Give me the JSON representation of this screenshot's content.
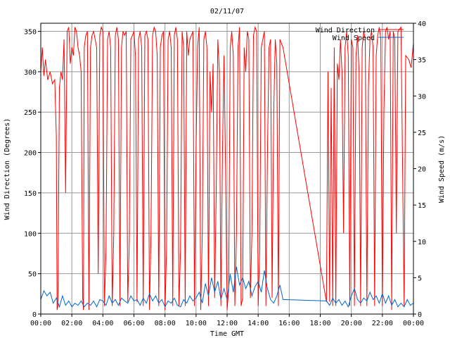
{
  "chart_data": {
    "type": "line",
    "title": "02/11/07",
    "xlabel": "Time GMT",
    "ylabel_left": "Wind Direction (Degrees)",
    "ylabel_right": "Wind Speed (m/s)",
    "x_unit": "hours GMT",
    "xlim": [
      0,
      24
    ],
    "ylim_left": [
      0,
      360
    ],
    "ylim_right": [
      0,
      40
    ],
    "x_ticks": [
      "00:00",
      "02:00",
      "04:00",
      "06:00",
      "08:00",
      "10:00",
      "12:00",
      "14:00",
      "16:00",
      "18:00",
      "20:00",
      "22:00",
      "00:00"
    ],
    "y_ticks_left": [
      "0",
      "50",
      "100",
      "150",
      "200",
      "250",
      "300",
      "350"
    ],
    "y_ticks_right": [
      "0",
      "5",
      "10",
      "15",
      "20",
      "25",
      "30",
      "35",
      "40"
    ],
    "grid": true,
    "legend_position": "top-right",
    "series": [
      {
        "name": "Wind Direction",
        "axis": "left",
        "color": "#ff0000",
        "points": [
          [
            0.0,
            300
          ],
          [
            0.1,
            330
          ],
          [
            0.2,
            295
          ],
          [
            0.3,
            315
          ],
          [
            0.45,
            290
          ],
          [
            0.6,
            300
          ],
          [
            0.75,
            285
          ],
          [
            0.9,
            290
          ],
          [
            1.0,
            220
          ],
          [
            1.05,
            5
          ],
          [
            1.1,
            10
          ],
          [
            1.2,
            280
          ],
          [
            1.3,
            300
          ],
          [
            1.4,
            290
          ],
          [
            1.5,
            340
          ],
          [
            1.6,
            150
          ],
          [
            1.7,
            350
          ],
          [
            1.8,
            355
          ],
          [
            1.9,
            310
          ],
          [
            2.0,
            330
          ],
          [
            2.1,
            320
          ],
          [
            2.2,
            355
          ],
          [
            2.3,
            350
          ],
          [
            2.4,
            330
          ],
          [
            2.5,
            320
          ],
          [
            2.6,
            300
          ],
          [
            2.7,
            20
          ],
          [
            2.75,
            5
          ],
          [
            2.8,
            330
          ],
          [
            2.9,
            345
          ],
          [
            3.0,
            350
          ],
          [
            3.1,
            5
          ],
          [
            3.2,
            330
          ],
          [
            3.3,
            345
          ],
          [
            3.4,
            350
          ],
          [
            3.5,
            340
          ],
          [
            3.6,
            330
          ],
          [
            3.7,
            50
          ],
          [
            3.8,
            345
          ],
          [
            3.9,
            355
          ],
          [
            4.0,
            350
          ],
          [
            4.1,
            10
          ],
          [
            4.2,
            80
          ],
          [
            4.3,
            340
          ],
          [
            4.4,
            350
          ],
          [
            4.5,
            330
          ],
          [
            4.6,
            10
          ],
          [
            4.7,
            100
          ],
          [
            4.8,
            345
          ],
          [
            4.9,
            355
          ],
          [
            5.0,
            340
          ],
          [
            5.1,
            10
          ],
          [
            5.2,
            330
          ],
          [
            5.3,
            350
          ],
          [
            5.4,
            345
          ],
          [
            5.5,
            350
          ],
          [
            5.6,
            15
          ],
          [
            5.7,
            90
          ],
          [
            5.8,
            340
          ],
          [
            5.9,
            345
          ],
          [
            6.0,
            350
          ],
          [
            6.1,
            320
          ],
          [
            6.2,
            15
          ],
          [
            6.3,
            340
          ],
          [
            6.4,
            350
          ],
          [
            6.5,
            330
          ],
          [
            6.6,
            10
          ],
          [
            6.7,
            345
          ],
          [
            6.8,
            350
          ],
          [
            6.9,
            340
          ],
          [
            7.0,
            5
          ],
          [
            7.1,
            100
          ],
          [
            7.2,
            345
          ],
          [
            7.3,
            355
          ],
          [
            7.4,
            350
          ],
          [
            7.5,
            320
          ],
          [
            7.6,
            10
          ],
          [
            7.7,
            330
          ],
          [
            7.8,
            345
          ],
          [
            7.9,
            350
          ],
          [
            8.0,
            5
          ],
          [
            8.1,
            80
          ],
          [
            8.2,
            340
          ],
          [
            8.3,
            350
          ],
          [
            8.4,
            330
          ],
          [
            8.5,
            10
          ],
          [
            8.6,
            345
          ],
          [
            8.7,
            355
          ],
          [
            8.8,
            340
          ],
          [
            8.9,
            10
          ],
          [
            9.0,
            80
          ],
          [
            9.1,
            350
          ],
          [
            9.2,
            330
          ],
          [
            9.3,
            10
          ],
          [
            9.4,
            350
          ],
          [
            9.5,
            320
          ],
          [
            9.6,
            340
          ],
          [
            9.7,
            345
          ],
          [
            9.8,
            350
          ],
          [
            9.9,
            10
          ],
          [
            10.0,
            200
          ],
          [
            10.1,
            330
          ],
          [
            10.2,
            355
          ],
          [
            10.3,
            5
          ],
          [
            10.4,
            100
          ],
          [
            10.5,
            340
          ],
          [
            10.6,
            350
          ],
          [
            10.7,
            330
          ],
          [
            10.8,
            10
          ],
          [
            10.9,
            300
          ],
          [
            11.0,
            250
          ],
          [
            11.1,
            310
          ],
          [
            11.2,
            20
          ],
          [
            11.3,
            150
          ],
          [
            11.4,
            340
          ],
          [
            11.5,
            300
          ],
          [
            11.6,
            10
          ],
          [
            11.7,
            200
          ],
          [
            11.8,
            320
          ],
          [
            11.9,
            180
          ],
          [
            12.0,
            5
          ],
          [
            12.1,
            30
          ],
          [
            12.2,
            330
          ],
          [
            12.3,
            350
          ],
          [
            12.4,
            320
          ],
          [
            12.5,
            10
          ],
          [
            12.6,
            100
          ],
          [
            12.7,
            330
          ],
          [
            12.8,
            355
          ],
          [
            12.9,
            10
          ],
          [
            13.0,
            20
          ],
          [
            13.1,
            330
          ],
          [
            13.2,
            300
          ],
          [
            13.3,
            350
          ],
          [
            13.4,
            340
          ],
          [
            13.5,
            20
          ],
          [
            13.6,
            100
          ],
          [
            13.7,
            345
          ],
          [
            13.8,
            355
          ],
          [
            13.9,
            350
          ],
          [
            14.0,
            10
          ],
          [
            14.1,
            80
          ],
          [
            14.2,
            330
          ],
          [
            14.3,
            340
          ],
          [
            14.4,
            350
          ],
          [
            14.5,
            10
          ],
          [
            14.6,
            200
          ],
          [
            14.7,
            330
          ],
          [
            14.8,
            340
          ],
          [
            14.9,
            20
          ],
          [
            15.0,
            250
          ],
          [
            15.1,
            340
          ],
          [
            15.2,
            310
          ],
          [
            15.3,
            10
          ],
          [
            15.4,
            340
          ],
          [
            15.6,
            330
          ],
          [
            18.4,
            15
          ],
          [
            18.5,
            300
          ],
          [
            18.6,
            15
          ],
          [
            18.7,
            280
          ],
          [
            18.8,
            10
          ],
          [
            18.9,
            330
          ],
          [
            19.0,
            10
          ],
          [
            19.1,
            310
          ],
          [
            19.2,
            290
          ],
          [
            19.3,
            340
          ],
          [
            19.4,
            300
          ],
          [
            19.5,
            100
          ],
          [
            19.6,
            330
          ],
          [
            19.7,
            350
          ],
          [
            19.8,
            320
          ],
          [
            19.9,
            10
          ],
          [
            20.0,
            340
          ],
          [
            20.1,
            330
          ],
          [
            20.2,
            10
          ],
          [
            20.3,
            320
          ],
          [
            20.4,
            345
          ],
          [
            20.5,
            300
          ],
          [
            20.6,
            10
          ],
          [
            20.7,
            330
          ],
          [
            20.8,
            350
          ],
          [
            20.9,
            340
          ],
          [
            21.0,
            10
          ],
          [
            21.1,
            280
          ],
          [
            21.2,
            340
          ],
          [
            21.3,
            350
          ],
          [
            21.4,
            330
          ],
          [
            21.5,
            10
          ],
          [
            21.6,
            320
          ],
          [
            21.7,
            345
          ],
          [
            21.8,
            355
          ],
          [
            21.9,
            340
          ],
          [
            22.0,
            10
          ],
          [
            22.1,
            250
          ],
          [
            22.2,
            350
          ],
          [
            22.3,
            355
          ],
          [
            22.4,
            340
          ],
          [
            22.5,
            350
          ],
          [
            22.6,
            5
          ],
          [
            22.7,
            350
          ],
          [
            22.8,
            340
          ],
          [
            22.9,
            100
          ],
          [
            23.0,
            350
          ],
          [
            23.2,
            355
          ],
          [
            23.4,
            10
          ],
          [
            23.5,
            320
          ],
          [
            23.7,
            315
          ],
          [
            23.85,
            305
          ],
          [
            24.0,
            335
          ]
        ]
      },
      {
        "name": "Wind Speed",
        "axis": "right",
        "color": "#0066cc",
        "points": [
          [
            0.0,
            2.0
          ],
          [
            0.2,
            3.2
          ],
          [
            0.4,
            2.5
          ],
          [
            0.6,
            3.0
          ],
          [
            0.8,
            1.5
          ],
          [
            1.0,
            2.2
          ],
          [
            1.2,
            1.0
          ],
          [
            1.4,
            2.5
          ],
          [
            1.6,
            1.2
          ],
          [
            1.8,
            1.8
          ],
          [
            2.0,
            1.0
          ],
          [
            2.2,
            1.5
          ],
          [
            2.4,
            1.2
          ],
          [
            2.6,
            1.8
          ],
          [
            2.8,
            1.0
          ],
          [
            3.0,
            1.5
          ],
          [
            3.2,
            1.2
          ],
          [
            3.4,
            1.8
          ],
          [
            3.6,
            1.0
          ],
          [
            3.8,
            2.0
          ],
          [
            4.0,
            1.8
          ],
          [
            4.2,
            1.2
          ],
          [
            4.4,
            2.5
          ],
          [
            4.6,
            1.5
          ],
          [
            4.8,
            2.0
          ],
          [
            5.0,
            1.2
          ],
          [
            5.2,
            2.2
          ],
          [
            5.4,
            1.8
          ],
          [
            5.6,
            1.5
          ],
          [
            5.8,
            2.5
          ],
          [
            6.0,
            1.8
          ],
          [
            6.2,
            2.0
          ],
          [
            6.4,
            1.2
          ],
          [
            6.6,
            2.2
          ],
          [
            6.8,
            1.5
          ],
          [
            7.0,
            2.8
          ],
          [
            7.2,
            1.8
          ],
          [
            7.4,
            2.5
          ],
          [
            7.6,
            1.5
          ],
          [
            7.8,
            2.0
          ],
          [
            8.0,
            1.0
          ],
          [
            8.2,
            1.8
          ],
          [
            8.4,
            1.5
          ],
          [
            8.6,
            2.2
          ],
          [
            8.8,
            1.2
          ],
          [
            9.0,
            1.0
          ],
          [
            9.2,
            2.0
          ],
          [
            9.4,
            1.5
          ],
          [
            9.6,
            2.5
          ],
          [
            9.8,
            1.8
          ],
          [
            10.0,
            2.2
          ],
          [
            10.2,
            3.0
          ],
          [
            10.4,
            1.5
          ],
          [
            10.6,
            4.2
          ],
          [
            10.8,
            2.5
          ],
          [
            11.0,
            5.0
          ],
          [
            11.2,
            3.0
          ],
          [
            11.4,
            4.5
          ],
          [
            11.6,
            2.0
          ],
          [
            11.8,
            3.5
          ],
          [
            12.0,
            2.0
          ],
          [
            12.2,
            5.5
          ],
          [
            12.4,
            3.0
          ],
          [
            12.6,
            6.5
          ],
          [
            12.8,
            4.0
          ],
          [
            13.0,
            5.0
          ],
          [
            13.2,
            3.5
          ],
          [
            13.4,
            4.5
          ],
          [
            13.6,
            2.5
          ],
          [
            13.8,
            3.8
          ],
          [
            14.0,
            4.5
          ],
          [
            14.2,
            3.0
          ],
          [
            14.4,
            6.0
          ],
          [
            14.6,
            3.5
          ],
          [
            14.8,
            2.0
          ],
          [
            15.0,
            1.5
          ],
          [
            15.2,
            2.5
          ],
          [
            15.4,
            4.0
          ],
          [
            15.6,
            2.0
          ],
          [
            18.4,
            1.8
          ],
          [
            18.6,
            1.2
          ],
          [
            18.8,
            2.2
          ],
          [
            19.0,
            1.5
          ],
          [
            19.2,
            2.0
          ],
          [
            19.4,
            1.2
          ],
          [
            19.6,
            1.8
          ],
          [
            19.8,
            1.0
          ],
          [
            20.0,
            2.5
          ],
          [
            20.2,
            3.5
          ],
          [
            20.4,
            2.0
          ],
          [
            20.6,
            1.5
          ],
          [
            20.8,
            2.2
          ],
          [
            21.0,
            1.8
          ],
          [
            21.2,
            3.0
          ],
          [
            21.4,
            2.0
          ],
          [
            21.6,
            2.5
          ],
          [
            21.8,
            1.5
          ],
          [
            22.0,
            2.8
          ],
          [
            22.2,
            1.5
          ],
          [
            22.4,
            2.5
          ],
          [
            22.6,
            1.2
          ],
          [
            22.8,
            2.0
          ],
          [
            23.0,
            1.0
          ],
          [
            23.2,
            1.5
          ],
          [
            23.4,
            1.0
          ],
          [
            23.6,
            2.0
          ],
          [
            23.8,
            1.2
          ],
          [
            24.0,
            1.5
          ]
        ]
      }
    ]
  }
}
